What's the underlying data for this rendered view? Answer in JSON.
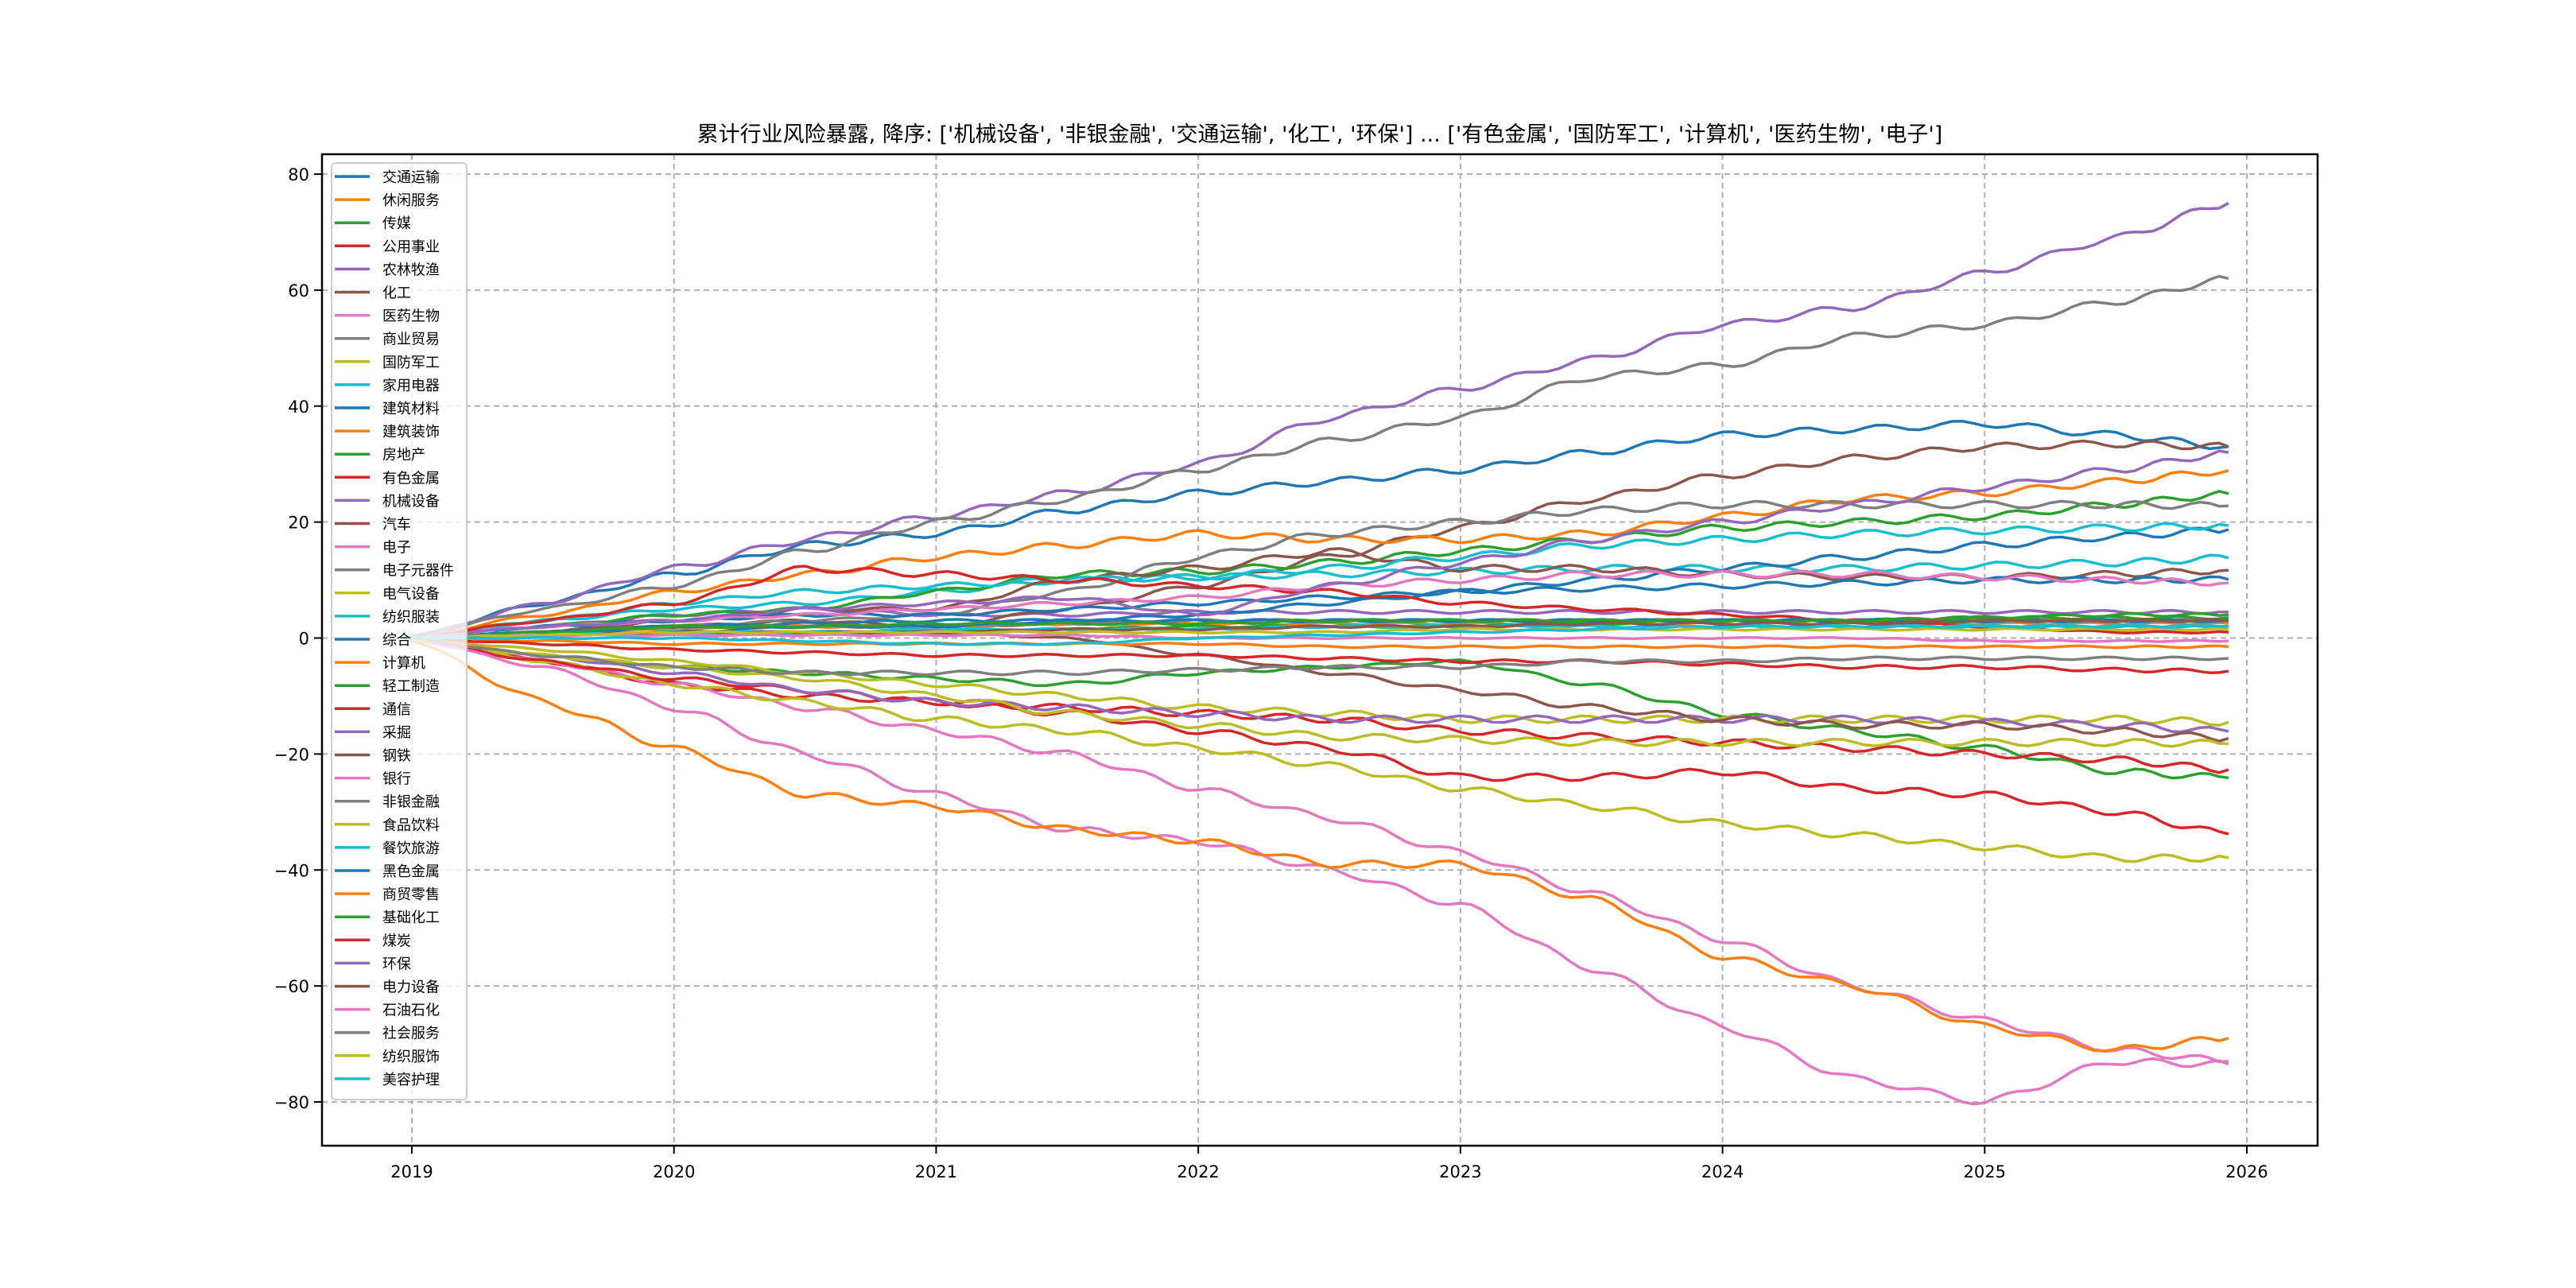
{
  "chart_data": {
    "type": "line",
    "title": "累计行业风险暴露, 降序: ['机械设备', '非银金融', '交通运输', '化工', '环保'] ... ['有色金属', '国防军工', '计算机', '医药生物', '电子']",
    "xlabel": "",
    "ylabel": "",
    "xlim": [
      2018.7,
      2026.27
    ],
    "ylim": [
      -88.5,
      88.5
    ],
    "x_ticks": [
      2019,
      2020,
      2021,
      2022,
      2023,
      2024,
      2025,
      2026
    ],
    "x_tick_labels": [
      "2019",
      "2020",
      "2021",
      "2022",
      "2023",
      "2024",
      "2025",
      "2026"
    ],
    "y_ticks": [
      80,
      60,
      40,
      20,
      0,
      -20,
      -40,
      -60,
      -80
    ],
    "y_tick_labels": [
      "80",
      "60",
      "40",
      "20",
      "0",
      "−20",
      "−40",
      "−60",
      "−80"
    ],
    "grid": true,
    "legend_position": "upper-left",
    "x": [
      2018.97,
      2019.5,
      2020.0,
      2020.5,
      2021.0,
      2021.5,
      2022.0,
      2022.5,
      2023.0,
      2023.5,
      2024.0,
      2024.5,
      2025.0,
      2025.5,
      2025.93
    ],
    "series": [
      {
        "name": "交通运输",
        "color": "#1f77b4",
        "values": [
          0,
          6,
          11,
          16,
          18,
          22,
          25,
          27,
          29,
          32,
          35,
          36,
          37,
          35,
          33
        ]
      },
      {
        "name": "休闲服务",
        "color": "#ff7f0e",
        "values": [
          0,
          1,
          1.5,
          2,
          2,
          2.5,
          2.5,
          2.5,
          2.5,
          2.5,
          2.5,
          2.5,
          2.5,
          2.5,
          2.5
        ]
      },
      {
        "name": "传媒",
        "color": "#2ca02c",
        "values": [
          0,
          -3,
          -5,
          -6,
          -7,
          -8,
          -6,
          -5,
          -4,
          -8,
          -13,
          -16,
          -19,
          -23,
          -24.1
        ]
      },
      {
        "name": "公用事业",
        "color": "#d62728",
        "values": [
          0,
          -4,
          -8,
          -10,
          -11,
          -12,
          -13,
          -14,
          -16,
          -17,
          -18,
          -19,
          -20,
          -21,
          -22.7
        ]
      },
      {
        "name": "农林牧渔",
        "color": "#9467bd",
        "values": [
          0,
          2,
          4,
          5,
          4,
          4,
          4.5,
          4.5,
          4.5,
          4.5,
          4.5,
          4.5,
          4.5,
          4.5,
          4.5
        ]
      },
      {
        "name": "化工",
        "color": "#8c564b",
        "values": [
          0,
          1,
          2,
          3,
          2,
          5,
          9,
          14,
          19,
          24,
          28,
          31,
          33,
          33.5,
          33
        ]
      },
      {
        "name": "医药生物",
        "color": "#e377c2",
        "values": [
          0,
          -4,
          -8,
          -12,
          -16,
          -20,
          -26,
          -31,
          -37,
          -44,
          -52,
          -60,
          -66,
          -71,
          -73
        ]
      },
      {
        "name": "商业贸易",
        "color": "#7f7f7f",
        "values": [
          0,
          1,
          2,
          2,
          2,
          2.5,
          3,
          3,
          3,
          3,
          3,
          3,
          3,
          3,
          3
        ]
      },
      {
        "name": "国防军工",
        "color": "#bcbd22",
        "values": [
          0,
          -4,
          -8,
          -11,
          -14,
          -16,
          -19,
          -22,
          -26,
          -29,
          -32,
          -34,
          -36,
          -38,
          -37.9
        ]
      },
      {
        "name": "家用电器",
        "color": "#17becf",
        "values": [
          0,
          3,
          5,
          6,
          8,
          10,
          10.5,
          11,
          11.5,
          12,
          12,
          12,
          12.5,
          13,
          13.8
        ]
      },
      {
        "name": "建筑材料",
        "color": "#1f77b4",
        "values": [
          0,
          1,
          1,
          2,
          2,
          3,
          4,
          6,
          8,
          10,
          12,
          14,
          16,
          17.5,
          18.7
        ]
      },
      {
        "name": "建筑装饰",
        "color": "#ff7f0e",
        "values": [
          0,
          4,
          8,
          11,
          14,
          16,
          18,
          17,
          17,
          18,
          21,
          24,
          25,
          27,
          28.9
        ]
      },
      {
        "name": "房地产",
        "color": "#2ca02c",
        "values": [
          0,
          2,
          4,
          5,
          8,
          11,
          11.5,
          13,
          15,
          17,
          19,
          20,
          21,
          23,
          24.9
        ]
      },
      {
        "name": "有色金属",
        "color": "#d62728",
        "values": [
          0,
          -4,
          -7,
          -9,
          -11,
          -13,
          -16,
          -19,
          -24,
          -24,
          -23,
          -26,
          -27,
          -30,
          -33.8
        ]
      },
      {
        "name": "机械设备",
        "color": "#9467bd",
        "values": [
          0,
          6,
          12,
          17,
          21,
          25,
          30,
          38,
          43,
          48,
          54,
          57,
          63,
          69,
          75
        ]
      },
      {
        "name": "汽车",
        "color": "#8c564b",
        "values": [
          0,
          1,
          3,
          5,
          5,
          10,
          12,
          15,
          12,
          12,
          11,
          10.5,
          10.5,
          11,
          11.7
        ]
      },
      {
        "name": "电子",
        "color": "#e377c2",
        "values": [
          0,
          -5,
          -12,
          -20,
          -27,
          -33,
          -35,
          -40,
          -46,
          -57,
          -67,
          -76,
          -80,
          -73,
          -73.5
        ]
      },
      {
        "name": "电子元器件",
        "color": "#7f7f7f",
        "values": [
          0,
          1,
          2,
          3,
          4,
          8,
          14,
          18,
          20,
          22,
          23,
          23,
          23,
          23,
          22.8
        ]
      },
      {
        "name": "电气设备",
        "color": "#bcbd22",
        "values": [
          0,
          -2,
          -4,
          -6,
          -8,
          -10,
          -12,
          -13,
          -14,
          -14,
          -14,
          -14,
          -14,
          -14,
          -14.5
        ]
      },
      {
        "name": "纺织服装",
        "color": "#17becf",
        "values": [
          0,
          3,
          6,
          8,
          9,
          10,
          10.5,
          12,
          14,
          16,
          17,
          18,
          18.5,
          19,
          19.4
        ]
      },
      {
        "name": "综合",
        "color": "#1f77b4",
        "values": [
          0,
          2,
          3,
          4,
          4,
          5,
          6,
          7,
          8,
          8.5,
          9,
          9.5,
          10,
          10,
          10.1
        ]
      },
      {
        "name": "计算机",
        "color": "#ff7f0e",
        "values": [
          0,
          -11,
          -19,
          -27,
          -29,
          -33,
          -35,
          -39,
          -39,
          -45,
          -55,
          -60,
          -67,
          -71,
          -69
        ]
      },
      {
        "name": "轻工制造",
        "color": "#2ca02c",
        "values": [
          0,
          0.5,
          1,
          1,
          1,
          1.5,
          2,
          2,
          2,
          2.5,
          3,
          3,
          3.5,
          3.5,
          3.5
        ]
      },
      {
        "name": "通信",
        "color": "#d62728",
        "values": [
          0,
          3,
          6,
          12,
          11,
          10,
          9,
          8,
          6,
          5,
          4,
          3,
          2,
          1,
          1
        ]
      },
      {
        "name": "采掘",
        "color": "#9467bd",
        "values": [
          0,
          -3,
          -6,
          -9,
          -11,
          -12,
          -13,
          -14,
          -14,
          -14,
          -14,
          -14,
          -14.5,
          -15,
          -16.1
        ]
      },
      {
        "name": "钢铁",
        "color": "#8c564b",
        "values": [
          0,
          0.5,
          1,
          1,
          1,
          0,
          -3,
          -6,
          -9,
          -12,
          -14,
          -15,
          -15,
          -16,
          -17.3
        ]
      },
      {
        "name": "银行",
        "color": "#e377c2",
        "values": [
          0,
          2,
          3,
          4,
          5,
          6,
          7,
          9,
          10,
          11,
          11,
          11,
          10.5,
          10,
          9.5
        ]
      },
      {
        "name": "非银金融",
        "color": "#7f7f7f",
        "values": [
          0,
          5,
          9,
          15,
          20,
          24,
          29,
          34,
          38,
          45,
          47,
          52,
          54,
          58,
          62
        ]
      },
      {
        "name": "食品饮料",
        "color": "#bcbd22",
        "values": [
          0,
          -3,
          -5,
          -7,
          -10,
          -13,
          -15,
          -17,
          -17.5,
          -18,
          -18,
          -18,
          -18,
          -18,
          -18.2
        ]
      },
      {
        "name": "餐饮旅游",
        "color": "#17becf",
        "values": [
          0,
          0.5,
          1,
          1,
          1.5,
          1.5,
          1.5,
          2,
          2,
          2,
          2,
          2,
          2,
          2,
          2
        ]
      },
      {
        "name": "黑色金属",
        "color": "#1f77b4",
        "values": [
          0,
          1,
          2,
          2.5,
          3,
          3,
          3,
          3,
          3,
          3,
          3,
          3,
          3,
          3,
          3
        ]
      },
      {
        "name": "商贸零售",
        "color": "#ff7f0e",
        "values": [
          0,
          -0.5,
          -1,
          -1,
          -1,
          -1,
          -1,
          -1.5,
          -1.5,
          -1.5,
          -1.5,
          -1.5,
          -1.5,
          -1.5,
          -1.5
        ]
      },
      {
        "name": "基础化工",
        "color": "#2ca02c",
        "values": [
          0,
          1,
          2,
          2,
          2.5,
          2.5,
          2.5,
          3,
          3,
          3,
          3,
          3,
          3.5,
          4,
          4
        ]
      },
      {
        "name": "煤炭",
        "color": "#d62728",
        "values": [
          0,
          -1,
          -2,
          -2.5,
          -3,
          -3,
          -3,
          -3.5,
          -4,
          -4,
          -4.5,
          -5,
          -5,
          -5.5,
          -5.7
        ]
      },
      {
        "name": "环保",
        "color": "#9467bd",
        "values": [
          0,
          2,
          3,
          5,
          6,
          7,
          4,
          9,
          13,
          17,
          20,
          23,
          26,
          29,
          32
        ]
      },
      {
        "name": "电力设备",
        "color": "#8c564b",
        "values": [
          0,
          0.5,
          1,
          1,
          1,
          1.5,
          1.5,
          2,
          2,
          2.5,
          2.5,
          2.5,
          3,
          3,
          3
        ]
      },
      {
        "name": "石油石化",
        "color": "#e377c2",
        "values": [
          0,
          0.5,
          0.5,
          0.5,
          0.5,
          0.5,
          0,
          0,
          0,
          0,
          0,
          0,
          -0.5,
          -0.5,
          -0.5
        ]
      },
      {
        "name": "社会服务",
        "color": "#7f7f7f",
        "values": [
          0,
          -3,
          -5,
          -6,
          -6,
          -6,
          -5.5,
          -5,
          -5,
          -4,
          -4,
          -3.5,
          -3.5,
          -3.5,
          -3.5
        ]
      },
      {
        "name": "纺织服饰",
        "color": "#bcbd22",
        "values": [
          0,
          0.5,
          1,
          1,
          1,
          1,
          1,
          1,
          1.5,
          1.5,
          1.5,
          1.5,
          1.5,
          1.5,
          1.5
        ]
      },
      {
        "name": "美容护理",
        "color": "#17becf",
        "values": [
          0,
          0,
          0,
          -0.5,
          -1,
          -1,
          0,
          0.5,
          1,
          1.5,
          2,
          2,
          2,
          2,
          2
        ]
      }
    ]
  }
}
